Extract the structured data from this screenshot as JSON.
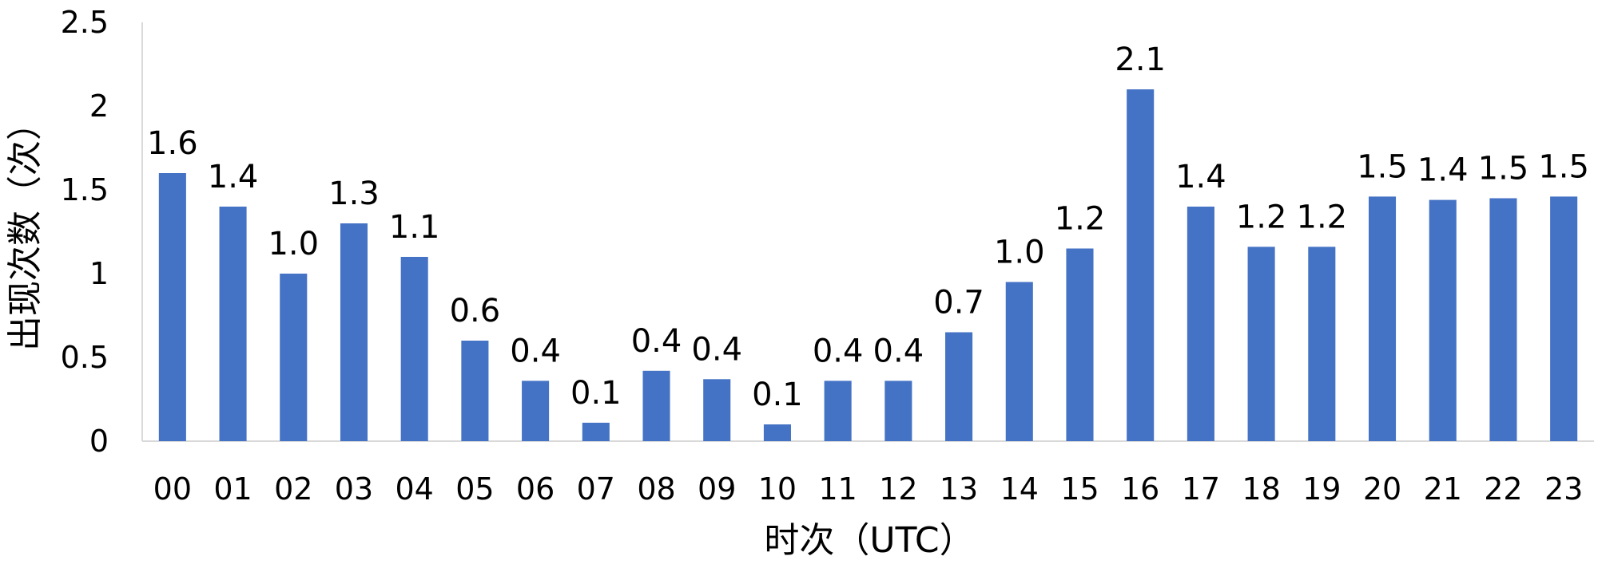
{
  "chart_data": {
    "type": "bar",
    "title": "",
    "xlabel": "时次（UTC）",
    "ylabel": "出现次数（次）",
    "categories": [
      "00",
      "01",
      "02",
      "03",
      "04",
      "05",
      "06",
      "07",
      "08",
      "09",
      "10",
      "11",
      "12",
      "13",
      "14",
      "15",
      "16",
      "17",
      "18",
      "19",
      "20",
      "21",
      "22",
      "23"
    ],
    "values": [
      1.6,
      1.4,
      1.0,
      1.3,
      1.1,
      0.6,
      0.36,
      0.11,
      0.42,
      0.37,
      0.1,
      0.36,
      0.36,
      0.65,
      0.95,
      1.15,
      2.1,
      1.4,
      1.16,
      1.16,
      1.46,
      1.44,
      1.45,
      1.46
    ],
    "data_labels": [
      "1.6",
      "1.4",
      "1.0",
      "1.3",
      "1.1",
      "0.6",
      "0.4",
      "0.1",
      "0.4",
      "0.4",
      "0.1",
      "0.4",
      "0.4",
      "0.7",
      "1.0",
      "1.2",
      "2.1",
      "1.4",
      "1.2",
      "1.2",
      "1.5",
      "1.4",
      "1.5",
      "1.5"
    ],
    "ylim": [
      0,
      2.5
    ],
    "yticks": [
      "0",
      "0.5",
      "1",
      "1.5",
      "2",
      "2.5"
    ],
    "grid": false,
    "legend": "none",
    "bar_color": "#4472C4",
    "axis_color": "#D9D9D9"
  }
}
